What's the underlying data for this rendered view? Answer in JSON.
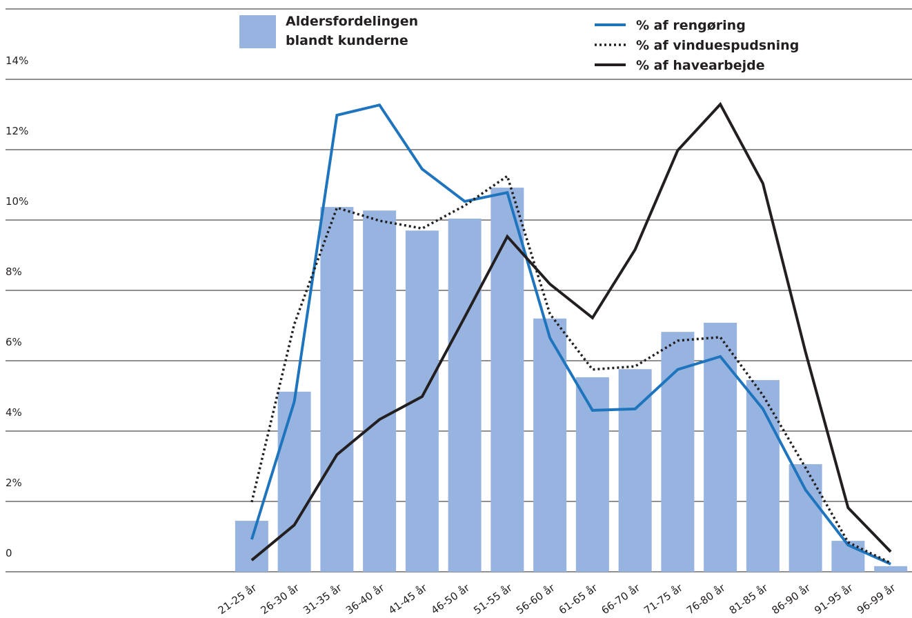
{
  "chart_data": {
    "type": "bar",
    "categories": [
      "21-25 år",
      "26-30 år",
      "31-35 år",
      "36-40 år",
      "41-45 år",
      "46-50 år",
      "51-55 år",
      "56-60 år",
      "61-65 år",
      "66-70 år",
      "71-75 år",
      "76-80 år",
      "81-85 år",
      "86-90 år",
      "91-95 år",
      "96-99 år"
    ],
    "series": [
      {
        "name": "Aldersfordelingen blandt kunderne",
        "style": "bar",
        "color": "#97b3df",
        "values": [
          1.45,
          5.12,
          10.37,
          10.27,
          9.7,
          10.04,
          10.92,
          7.2,
          5.53,
          5.76,
          6.82,
          7.08,
          5.45,
          3.06,
          0.88,
          0.16
        ]
      },
      {
        "name": "% af rengøring",
        "style": "solid",
        "color": "#1f75bd",
        "values": [
          0.92,
          4.84,
          12.98,
          13.27,
          11.45,
          10.53,
          10.78,
          6.65,
          4.59,
          4.63,
          5.75,
          6.12,
          4.63,
          2.33,
          0.76,
          0.22
        ]
      },
      {
        "name": "% af vinduespudsning",
        "style": "dotted",
        "color": "#231f20",
        "values": [
          1.98,
          7.04,
          10.35,
          9.98,
          9.76,
          10.41,
          11.25,
          7.33,
          5.75,
          5.84,
          6.57,
          6.67,
          5.02,
          2.96,
          0.84,
          0.25
        ]
      },
      {
        "name": "% af havearbejde",
        "style": "solid",
        "color": "#231f20",
        "values": [
          0.33,
          1.33,
          3.33,
          4.33,
          4.98,
          7.24,
          9.53,
          8.18,
          7.22,
          9.16,
          11.98,
          13.29,
          11.04,
          6.25,
          1.82,
          0.57
        ]
      }
    ],
    "ylim": [
      0,
      14
    ],
    "yticks": [
      0,
      {
        "value": 2,
        "label": "2%"
      },
      {
        "value": 4,
        "label": "4%"
      },
      {
        "value": 6,
        "label": "6%"
      },
      {
        "value": 8,
        "label": "8%"
      },
      {
        "value": 10,
        "label": "10%"
      },
      {
        "value": 12,
        "label": "12%"
      },
      {
        "value": 14,
        "label": "14%"
      }
    ],
    "grid": true
  }
}
